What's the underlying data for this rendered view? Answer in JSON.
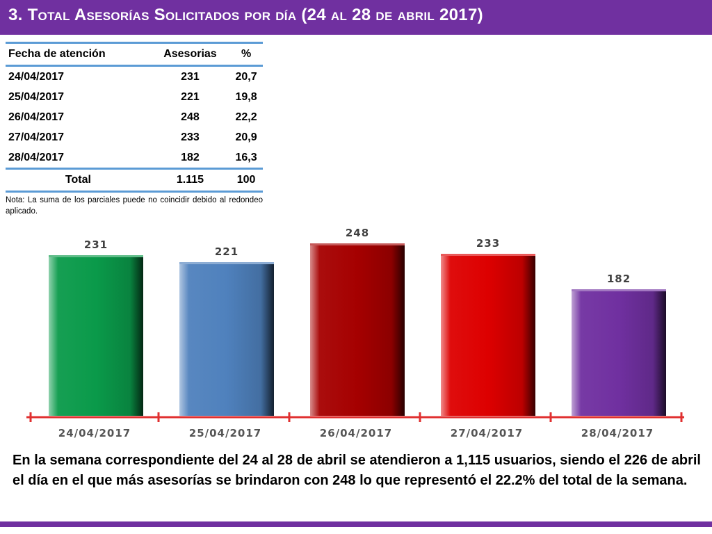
{
  "header": {
    "title": "3.  Total Asesorías Solicitados por día  (24 al 28 de abril  2017)"
  },
  "table": {
    "headers": [
      "Fecha de atención",
      "Asesorias",
      "%"
    ],
    "rows": [
      [
        "24/04/2017",
        "231",
        "20,7"
      ],
      [
        "25/04/2017",
        "221",
        "19,8"
      ],
      [
        "26/04/2017",
        "248",
        "22,2"
      ],
      [
        "27/04/2017",
        "233",
        "20,9"
      ],
      [
        "28/04/2017",
        "182",
        "16,3"
      ]
    ],
    "total": [
      "Total",
      "1.115",
      "100"
    ],
    "note": "Nota: La suma de los parciales puede no coincidir debido al redondeo aplicado."
  },
  "chart_data": {
    "type": "bar",
    "categories": [
      "24/04/2017",
      "25/04/2017",
      "26/04/2017",
      "27/04/2017",
      "28/04/2017"
    ],
    "values": [
      231,
      221,
      248,
      233,
      182
    ],
    "data_labels": [
      "231",
      "221",
      "248",
      "233",
      "182"
    ],
    "colors": [
      "#0a9a4a",
      "#4f81bd",
      "#a50000",
      "#dd0000",
      "#7030a0"
    ],
    "axis_color": "#e03030",
    "tick_label_color": "#555555",
    "title": "",
    "xlabel": "",
    "ylabel": "",
    "grid": false,
    "legend": "none"
  },
  "summary": "En la semana correspondiente del 24 al 28 de abril se atendieron a 1,115 usuarios, siendo el 226 de abril el día en el que más asesorías se brindaron con 248 lo que representó el 22.2% del total de la semana.",
  "colors": {
    "brand": "#7030a0",
    "table_rule": "#5b9bd5"
  }
}
